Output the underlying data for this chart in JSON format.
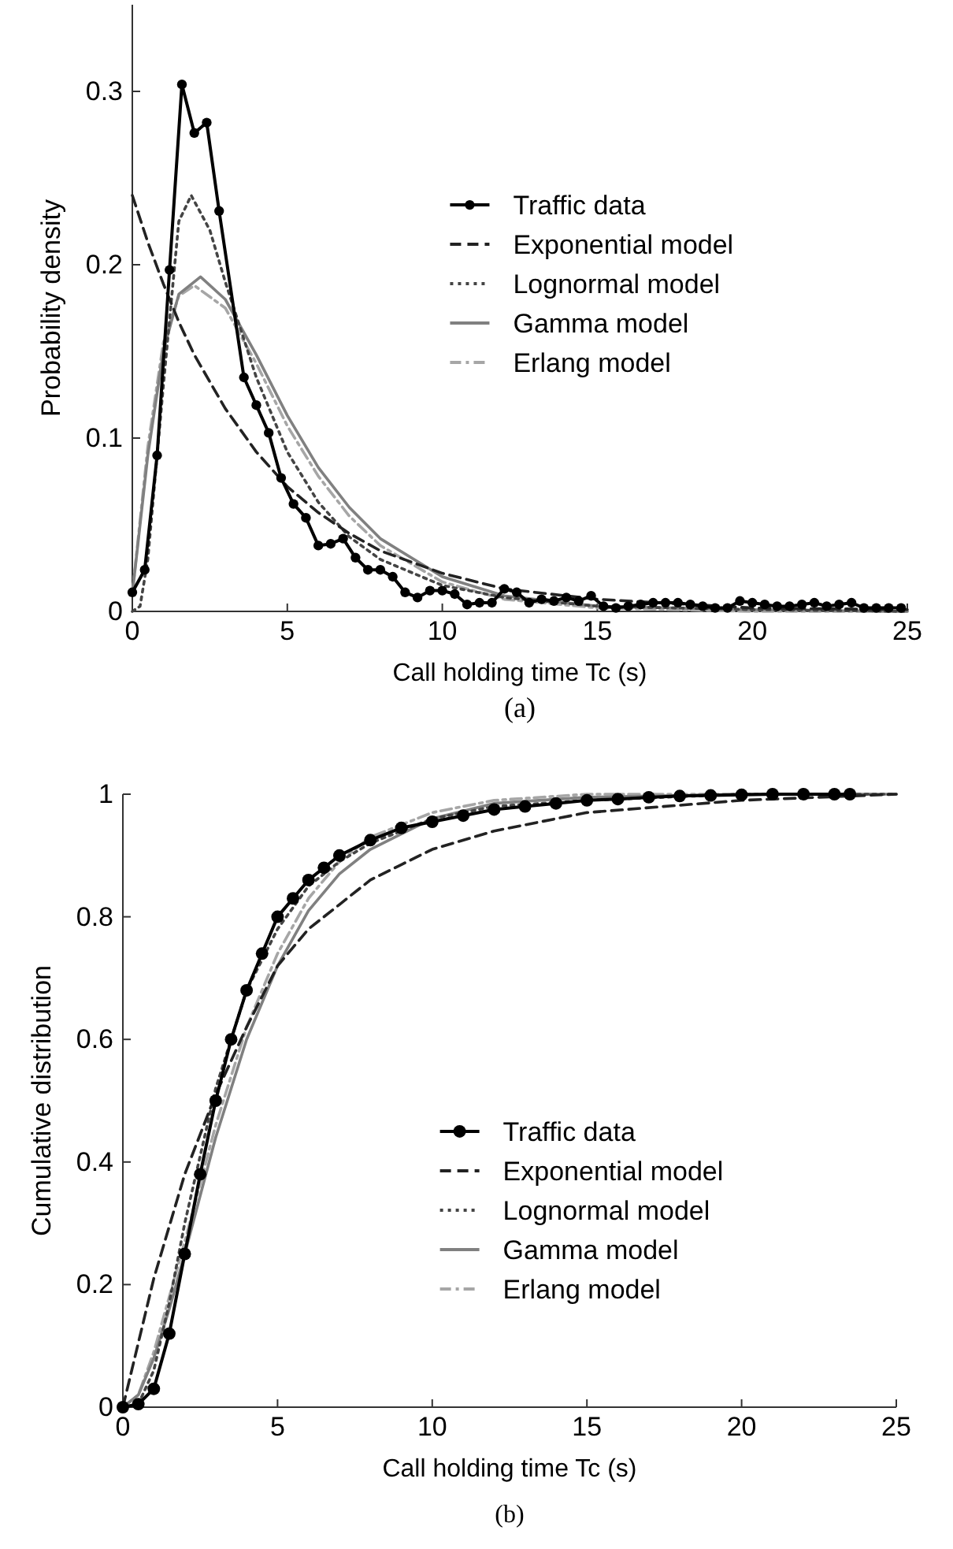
{
  "chart_data": [
    {
      "type": "line",
      "xlabel": "Call holding time Tc (s)",
      "ylabel": "Probability density",
      "xlim": [
        0,
        25
      ],
      "ylim": [
        0,
        0.35
      ],
      "xticks": [
        0,
        5,
        10,
        15,
        20,
        25
      ],
      "yticks": [
        0,
        0.1,
        0.2,
        0.3
      ],
      "grid": false,
      "legend": "top right",
      "annotations": [
        "(a)"
      ],
      "series": [
        {
          "name": "Traffic data",
          "color": "#000000",
          "marker": "circle",
          "line_style": "solid",
          "x": [
            0,
            0.4,
            0.8,
            1.2,
            1.6,
            2.0,
            2.4,
            2.8,
            3.6,
            4.0,
            4.4,
            4.8,
            5.2,
            5.6,
            6.0,
            6.4,
            6.8,
            7.2,
            7.6,
            8.0,
            8.4,
            8.8,
            9.2,
            9.6,
            10.0,
            10.4,
            10.8,
            11.2,
            11.6,
            12.0,
            12.4,
            12.8,
            13.2,
            13.6,
            14.0,
            14.4,
            14.8,
            15.2,
            15.6,
            16.0,
            16.4,
            16.8,
            17.2,
            17.6,
            18.0,
            18.4,
            18.8,
            19.2,
            19.6,
            20.0,
            20.4,
            20.8,
            21.2,
            21.6,
            22.0,
            22.4,
            22.8,
            23.2,
            23.6,
            24.0,
            24.4,
            24.8
          ],
          "values": [
            0.011,
            0.024,
            0.09,
            0.197,
            0.304,
            0.276,
            0.282,
            0.231,
            0.135,
            0.119,
            0.103,
            0.077,
            0.062,
            0.054,
            0.038,
            0.039,
            0.042,
            0.031,
            0.024,
            0.024,
            0.02,
            0.011,
            0.008,
            0.012,
            0.012,
            0.01,
            0.004,
            0.005,
            0.005,
            0.013,
            0.011,
            0.005,
            0.007,
            0.006,
            0.008,
            0.006,
            0.009,
            0.003,
            0.002,
            0.003,
            0.004,
            0.005,
            0.005,
            0.005,
            0.004,
            0.003,
            0.002,
            0.002,
            0.006,
            0.005,
            0.004,
            0.003,
            0.003,
            0.004,
            0.005,
            0.003,
            0.004,
            0.005,
            0.002,
            0.002,
            0.002,
            0.002
          ]
        },
        {
          "name": "Exponential model",
          "color": "#222222",
          "marker": "none",
          "line_style": "dashed",
          "x": [
            0,
            0.5,
            1,
            1.5,
            2,
            3,
            4,
            5,
            6,
            7,
            8,
            10,
            12,
            15,
            20,
            25
          ],
          "values": [
            0.24,
            0.213,
            0.189,
            0.167,
            0.148,
            0.117,
            0.092,
            0.072,
            0.057,
            0.045,
            0.035,
            0.022,
            0.013,
            0.007,
            0.002,
            0.001
          ]
        },
        {
          "name": "Lognormal model",
          "color": "#444444",
          "marker": "none",
          "line_style": "dotted",
          "x": [
            0,
            0.25,
            0.5,
            1,
            1.5,
            1.9,
            2.5,
            3,
            4,
            5,
            6,
            7,
            8,
            10,
            12,
            15,
            20,
            25
          ],
          "values": [
            0,
            0.003,
            0.03,
            0.13,
            0.225,
            0.24,
            0.22,
            0.19,
            0.135,
            0.092,
            0.063,
            0.043,
            0.03,
            0.015,
            0.008,
            0.003,
            0.001,
            0
          ]
        },
        {
          "name": "Gamma model",
          "color": "#808080",
          "marker": "none",
          "line_style": "solid",
          "x": [
            0,
            0.5,
            1,
            1.5,
            2.2,
            3,
            4,
            5,
            6,
            7,
            8,
            10,
            12,
            15,
            20,
            25
          ],
          "values": [
            0.01,
            0.09,
            0.15,
            0.183,
            0.193,
            0.18,
            0.148,
            0.113,
            0.083,
            0.06,
            0.042,
            0.02,
            0.009,
            0.003,
            0.001,
            0
          ]
        },
        {
          "name": "Erlang model",
          "color": "#a6a6a6",
          "marker": "none",
          "line_style": "dashdot",
          "x": [
            0,
            0.5,
            1,
            1.5,
            2,
            3,
            4,
            5,
            6,
            7,
            8,
            10,
            12,
            15,
            20,
            25
          ],
          "values": [
            0.01,
            0.095,
            0.155,
            0.182,
            0.188,
            0.175,
            0.143,
            0.107,
            0.078,
            0.055,
            0.038,
            0.017,
            0.007,
            0.002,
            0,
            0
          ]
        }
      ]
    },
    {
      "type": "line",
      "xlabel": "Call holding time Tc (s)",
      "ylabel": "Cumulative distribution",
      "xlim": [
        0,
        25
      ],
      "ylim": [
        0,
        1
      ],
      "xticks": [
        0,
        5,
        10,
        15,
        20,
        25
      ],
      "yticks": [
        0,
        0.2,
        0.4,
        0.6,
        0.8,
        1
      ],
      "grid": false,
      "legend": "right",
      "annotations": [
        "(b)"
      ],
      "series": [
        {
          "name": "Traffic data",
          "color": "#000000",
          "marker": "circle",
          "line_style": "solid",
          "x": [
            0,
            0.5,
            1,
            1.5,
            2,
            2.5,
            3,
            3.5,
            4,
            4.5,
            5,
            5.5,
            6,
            6.5,
            7,
            8,
            9,
            10,
            11,
            12,
            13,
            14,
            15,
            16,
            17,
            18,
            19,
            20,
            21,
            22,
            23,
            23.5
          ],
          "values": [
            0,
            0.005,
            0.03,
            0.12,
            0.25,
            0.38,
            0.5,
            0.6,
            0.68,
            0.74,
            0.8,
            0.83,
            0.86,
            0.88,
            0.9,
            0.925,
            0.945,
            0.955,
            0.965,
            0.975,
            0.98,
            0.985,
            0.99,
            0.992,
            0.995,
            0.997,
            0.998,
            0.999,
            1,
            1,
            1,
            1
          ]
        },
        {
          "name": "Exponential model",
          "color": "#222222",
          "marker": "none",
          "line_style": "dashed",
          "x": [
            0,
            1,
            2,
            3,
            4,
            5,
            6,
            7,
            8,
            10,
            12,
            15,
            20,
            25
          ],
          "values": [
            0,
            0.21,
            0.38,
            0.51,
            0.62,
            0.72,
            0.78,
            0.82,
            0.86,
            0.91,
            0.94,
            0.97,
            0.99,
            1
          ]
        },
        {
          "name": "Lognormal model",
          "color": "#444444",
          "marker": "none",
          "line_style": "dotted",
          "x": [
            0,
            0.5,
            1,
            1.5,
            2,
            3,
            4,
            5,
            6,
            7,
            8,
            10,
            12,
            15,
            20,
            25
          ],
          "values": [
            0,
            0.005,
            0.06,
            0.17,
            0.3,
            0.52,
            0.68,
            0.78,
            0.85,
            0.89,
            0.92,
            0.96,
            0.98,
            0.99,
            1,
            1
          ]
        },
        {
          "name": "Gamma model",
          "color": "#808080",
          "marker": "none",
          "line_style": "solid",
          "x": [
            0,
            0.5,
            1,
            1.5,
            2,
            3,
            4,
            5,
            6,
            7,
            8,
            10,
            12,
            15,
            20,
            25
          ],
          "values": [
            0,
            0.02,
            0.08,
            0.16,
            0.25,
            0.44,
            0.6,
            0.72,
            0.81,
            0.87,
            0.91,
            0.96,
            0.985,
            0.995,
            1,
            1
          ]
        },
        {
          "name": "Erlang model",
          "color": "#a6a6a6",
          "marker": "none",
          "line_style": "dashdot",
          "x": [
            0,
            0.5,
            1,
            1.5,
            2,
            3,
            4,
            5,
            6,
            7,
            8,
            10,
            12,
            15,
            20,
            25
          ],
          "values": [
            0,
            0.02,
            0.09,
            0.18,
            0.27,
            0.46,
            0.62,
            0.74,
            0.83,
            0.89,
            0.93,
            0.97,
            0.99,
            1,
            1,
            1
          ]
        }
      ]
    }
  ]
}
